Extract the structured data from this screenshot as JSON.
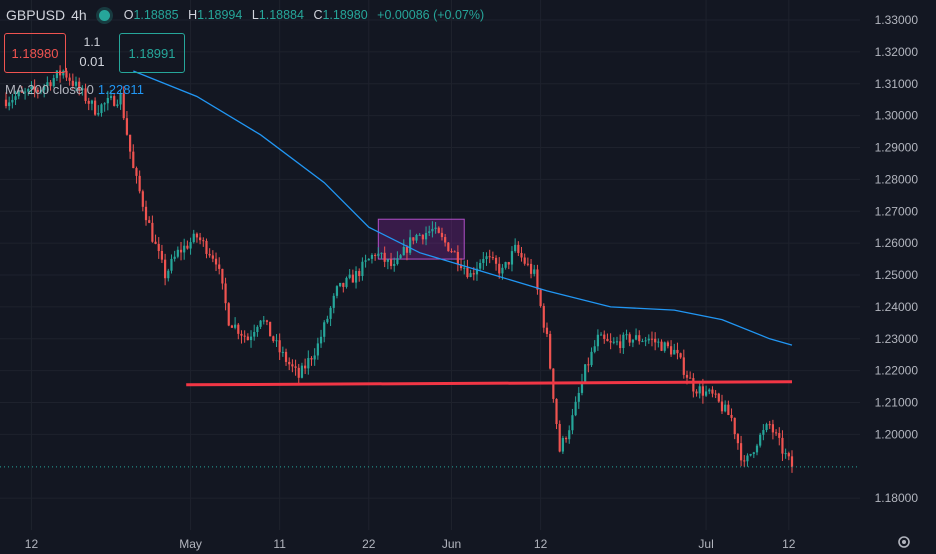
{
  "header": {
    "symbol": "GBPUSD",
    "timeframe": "4h",
    "o_label": "O",
    "o": "1.18885",
    "h_label": "H",
    "h": "1.18994",
    "l_label": "L",
    "l": "1.18884",
    "c_label": "C",
    "c": "1.18980",
    "change": "+0.00086 (+0.07%)"
  },
  "trade": {
    "sell_price": "1.18980",
    "spread_top": "1.1",
    "spread_bottom": "0.01",
    "buy_price": "1.18991"
  },
  "indicator": {
    "label": "MA 200 close 0",
    "value": "1.22811"
  },
  "colors": {
    "up": "#26a69a",
    "down": "#ef5350",
    "ma": "#2196f3",
    "support": "#f23645",
    "box": "#9c27b0",
    "bg": "#131722"
  },
  "chart_data": {
    "type": "candlestick",
    "y_ticks": [
      "1.33000",
      "1.32000",
      "1.31000",
      "1.30000",
      "1.29000",
      "1.28000",
      "1.27000",
      "1.26000",
      "1.25000",
      "1.24000",
      "1.23000",
      "1.22000",
      "1.21000",
      "1.20000",
      "1.18000"
    ],
    "y_tick_values": [
      1.33,
      1.32,
      1.31,
      1.3,
      1.29,
      1.28,
      1.27,
      1.26,
      1.25,
      1.24,
      1.23,
      1.22,
      1.21,
      1.2,
      1.18
    ],
    "ylim": [
      1.175,
      1.335
    ],
    "x_ticks": [
      "12",
      "May",
      "11",
      "22",
      "Jun",
      "12",
      "Jul",
      "12"
    ],
    "x_tick_index": [
      8,
      58,
      86,
      114,
      140,
      168,
      220,
      246
    ],
    "n_candles": 248,
    "price_path": [
      [
        0,
        1.305
      ],
      [
        10,
        1.308
      ],
      [
        18,
        1.314
      ],
      [
        28,
        1.302
      ],
      [
        36,
        1.306
      ],
      [
        40,
        1.283
      ],
      [
        46,
        1.262
      ],
      [
        50,
        1.25
      ],
      [
        54,
        1.257
      ],
      [
        60,
        1.262
      ],
      [
        66,
        1.255
      ],
      [
        70,
        1.236
      ],
      [
        76,
        1.23
      ],
      [
        80,
        1.237
      ],
      [
        86,
        1.226
      ],
      [
        92,
        1.218
      ],
      [
        98,
        1.228
      ],
      [
        104,
        1.245
      ],
      [
        110,
        1.25
      ],
      [
        116,
        1.257
      ],
      [
        122,
        1.252
      ],
      [
        128,
        1.262
      ],
      [
        134,
        1.264
      ],
      [
        140,
        1.258
      ],
      [
        146,
        1.25
      ],
      [
        150,
        1.256
      ],
      [
        156,
        1.251
      ],
      [
        160,
        1.258
      ],
      [
        166,
        1.25
      ],
      [
        170,
        1.23
      ],
      [
        174,
        1.195
      ],
      [
        178,
        1.205
      ],
      [
        182,
        1.22
      ],
      [
        186,
        1.23
      ],
      [
        190,
        1.228
      ],
      [
        196,
        1.23
      ],
      [
        202,
        1.23
      ],
      [
        210,
        1.226
      ],
      [
        216,
        1.215
      ],
      [
        222,
        1.212
      ],
      [
        228,
        1.205
      ],
      [
        232,
        1.19
      ],
      [
        236,
        1.198
      ],
      [
        240,
        1.203
      ],
      [
        244,
        1.195
      ],
      [
        247,
        1.1898
      ]
    ],
    "ma200": [
      [
        40,
        1.314
      ],
      [
        60,
        1.306
      ],
      [
        80,
        1.294
      ],
      [
        100,
        1.279
      ],
      [
        114,
        1.265
      ],
      [
        130,
        1.257
      ],
      [
        150,
        1.251
      ],
      [
        170,
        1.245
      ],
      [
        190,
        1.24
      ],
      [
        210,
        1.239
      ],
      [
        225,
        1.236
      ],
      [
        240,
        1.23
      ],
      [
        247,
        1.228
      ]
    ],
    "support_line": {
      "price": 1.2165,
      "from_index": 56,
      "to_index": 247
    },
    "consolidation_box": {
      "from_index": 117,
      "to_index": 144,
      "low": 1.255,
      "high": 1.2675
    },
    "last_price": "1.18980",
    "last_price_value": 1.1898
  }
}
